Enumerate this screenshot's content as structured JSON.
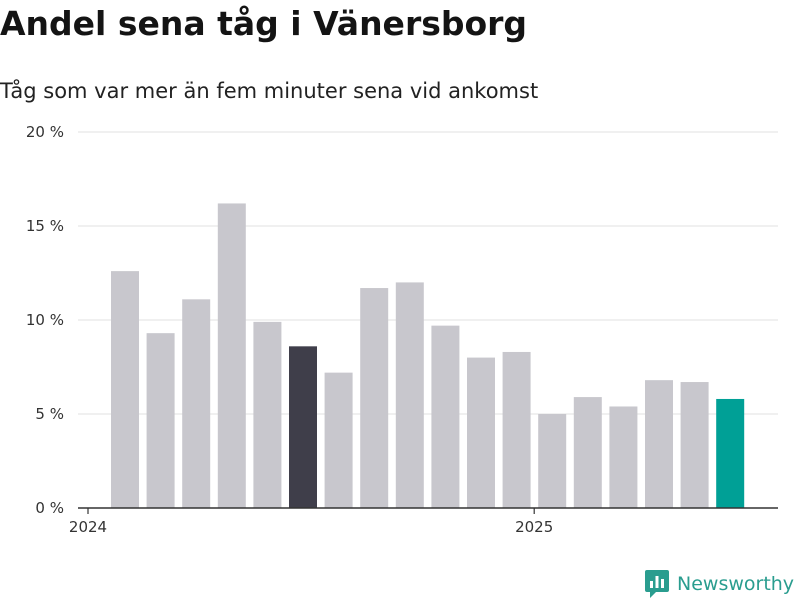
{
  "title": "Andel sena tåg i Vänersborg",
  "subtitle": "Tåg som var mer än fem minuter sena vid ankomst",
  "brand": {
    "name": "Newsworthy",
    "color": "#2a9d8f"
  },
  "colors": {
    "default_bar": "#c8c7cd",
    "highlight_bar": "#3f3e4a",
    "latest_bar": "#00a096",
    "grid": "#e0e0e0",
    "axis": "#333333"
  },
  "chart_data": {
    "type": "bar",
    "title": "Andel sena tåg i Vänersborg",
    "subtitle": "Tåg som var mer än fem minuter sena vid ankomst",
    "xlabel": "",
    "ylabel": "",
    "ylim": [
      0,
      20
    ],
    "yticks": [
      0,
      5,
      10,
      15,
      20
    ],
    "ytick_labels": [
      "0 %",
      "5 %",
      "10 %",
      "15 %",
      "20 %"
    ],
    "x_tick_labels": [
      {
        "label": "2024",
        "at_index": 0
      },
      {
        "label": "2025",
        "at_index": 12
      }
    ],
    "values": [
      12.6,
      9.3,
      11.1,
      16.2,
      9.9,
      8.6,
      7.2,
      11.7,
      12.0,
      9.7,
      8.0,
      8.3,
      5.0,
      5.9,
      5.4,
      6.8,
      6.7,
      5.8
    ],
    "highlight_index": 5,
    "latest_index": 17,
    "grid": true,
    "legend": false
  }
}
